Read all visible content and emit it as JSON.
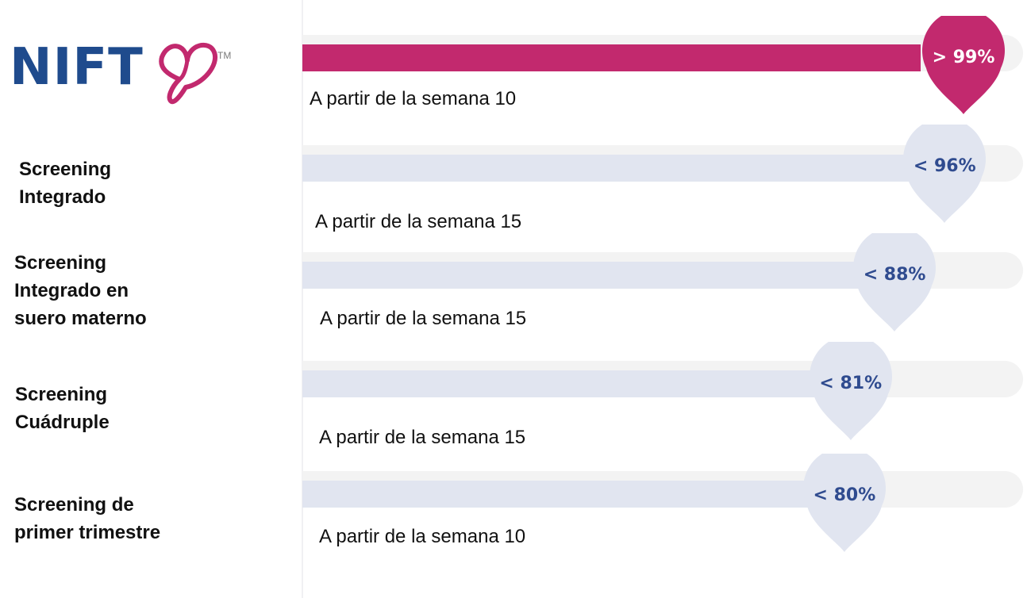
{
  "logo": {
    "text": "NIFT",
    "tm": "TM",
    "colors": {
      "text": "#1f4b8d",
      "mark": "#c2296e"
    }
  },
  "colors": {
    "highlight": "#c2296e",
    "bar": "#e1e5f0",
    "track": "#f3f3f3",
    "value_text": "#2f4b8f"
  },
  "chart_data": {
    "type": "bar",
    "orientation": "horizontal",
    "categories": [
      "",
      "Screening Integrado",
      "Screening Integrado en suero materno",
      "Screening Cuádruple",
      "Screening de primer trimestre"
    ],
    "values": [
      99,
      96,
      88,
      81,
      80
    ],
    "value_labels": [
      "> 99%",
      "< 96%",
      "< 88%",
      "< 81%",
      "< 80%"
    ],
    "annotations": [
      "A partir de la semana 10",
      "A partir de la semana 15",
      "A partir de la semana 15",
      "A partir de la semana 15",
      "A partir de la semana 10"
    ],
    "units": "%",
    "xlim": [
      0,
      100
    ],
    "highlight_index": 0,
    "grid": false,
    "legend": "none"
  },
  "rows": [
    {
      "label_lines": [],
      "value": 99,
      "value_label": "> 99%",
      "week": "A partir de la semana 10",
      "style": "pink"
    },
    {
      "label_lines": [
        "Screening",
        "Integrado"
      ],
      "value": 96,
      "value_label": "< 96%",
      "week": "A partir de la semana 15",
      "style": "blue"
    },
    {
      "label_lines": [
        "Screening",
        "Integrado en",
        "suero materno"
      ],
      "value": 88,
      "value_label": "< 88%",
      "week": "A partir de la semana 15",
      "style": "blue"
    },
    {
      "label_lines": [
        "Screening",
        "Cuádruple"
      ],
      "value": 81,
      "value_label": "< 81%",
      "week": "A partir de la semana 15",
      "style": "blue"
    },
    {
      "label_lines": [
        "Screening de",
        "primer trimestre"
      ],
      "value": 80,
      "value_label": "< 80%",
      "week": "A partir de la semana 10",
      "style": "blue"
    }
  ]
}
